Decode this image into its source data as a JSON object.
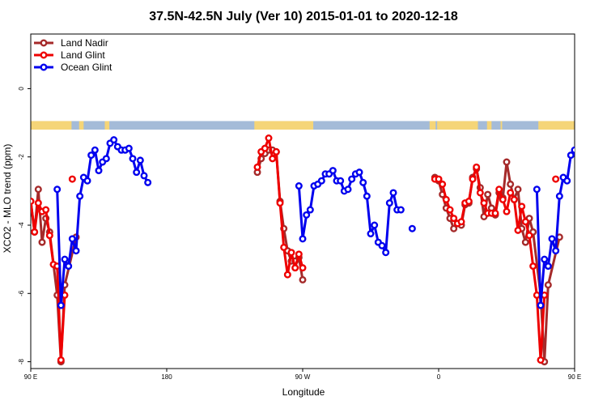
{
  "chart_data": {
    "type": "line",
    "title": "37.5N-42.5N July (Ver 10)   2015-01-01 to 2020-12-18",
    "xlabel": "Longitude",
    "ylabel": "XCO2 - MLO trend (ppm)",
    "xlim": [
      90,
      450
    ],
    "ylim": [
      -8.2,
      1.6
    ],
    "x_ticks": [
      {
        "value": 90,
        "label": "90 E"
      },
      {
        "value": 180,
        "label": "180"
      },
      {
        "value": 270,
        "label": "90 W"
      },
      {
        "value": 360,
        "label": "0"
      },
      {
        "value": 450,
        "label": "90 E"
      },
      {
        "value": 540,
        "label": "180"
      }
    ],
    "y_ticks": [
      {
        "value": 0,
        "label": "0"
      },
      {
        "value": -2,
        "label": "-2"
      },
      {
        "value": -4,
        "label": "-4"
      },
      {
        "value": -6,
        "label": "-6"
      },
      {
        "value": -8,
        "label": "-8"
      }
    ],
    "land_mask_bar": {
      "y_range": [
        -1.2,
        -0.95
      ],
      "ocean_color": "#a4bbd8",
      "land_color": "#f5d578",
      "land_spans": [
        [
          90,
          117
        ],
        [
          122,
          125
        ],
        [
          139,
          142
        ],
        [
          238,
          277
        ],
        [
          354,
          358
        ],
        [
          359,
          386
        ],
        [
          392,
          395
        ],
        [
          401,
          402
        ],
        [
          426,
          453
        ],
        [
          458,
          461
        ],
        [
          475,
          478
        ]
      ]
    },
    "legend": {
      "position": "top-left",
      "entries": [
        {
          "name": "Land Nadir",
          "color": "#a52a2a"
        },
        {
          "name": "Land Glint",
          "color": "#ee0000"
        },
        {
          "name": "Ocean Glint",
          "color": "#0000ee"
        }
      ]
    },
    "series": [
      {
        "name": "Land Nadir",
        "color": "#a52a2a",
        "segments": [
          [
            [
              90,
              -3.3
            ],
            [
              92.5,
              -4.2
            ],
            [
              95,
              -2.95
            ],
            [
              97.5,
              -4.5
            ],
            [
              100,
              -3.8
            ],
            [
              102.5,
              -4.2
            ],
            [
              107.5,
              -6.05
            ],
            [
              110,
              -8.0
            ],
            [
              112.5,
              -5.75
            ],
            [
              120,
              -4.35
            ]
          ],
          [
            [
              240,
              -2.45
            ],
            [
              242.5,
              -2.05
            ],
            [
              245,
              -1.9
            ],
            [
              247.5,
              -1.8
            ],
            [
              250,
              -1.8
            ],
            [
              252.5,
              -1.85
            ],
            [
              255,
              -3.3
            ],
            [
              257.5,
              -4.1
            ],
            [
              260,
              -4.75
            ],
            [
              262.5,
              -5.05
            ],
            [
              265,
              -5.05
            ],
            [
              267.5,
              -4.95
            ],
            [
              270,
              -5.6
            ]
          ],
          [
            [
              357.5,
              -2.6
            ],
            [
              360,
              -2.7
            ],
            [
              362.5,
              -3.1
            ],
            [
              365,
              -3.5
            ],
            [
              367.5,
              -3.8
            ],
            [
              370,
              -4.1
            ],
            [
              372.5,
              -3.95
            ],
            [
              375,
              -4.0
            ],
            [
              377.5,
              -3.4
            ],
            [
              380,
              -3.35
            ],
            [
              382.5,
              -2.6
            ],
            [
              385,
              -2.35
            ],
            [
              387.5,
              -2.9
            ],
            [
              390,
              -3.75
            ],
            [
              392.5,
              -3.1
            ],
            [
              395,
              -3.5
            ],
            [
              397.5,
              -3.7
            ],
            [
              400,
              -3.05
            ],
            [
              402.5,
              -3.2
            ],
            [
              405,
              -2.15
            ],
            [
              407.5,
              -2.8
            ],
            [
              410,
              -3.25
            ],
            [
              412.5,
              -2.95
            ],
            [
              415,
              -4.1
            ],
            [
              417.5,
              -4.5
            ],
            [
              420,
              -3.8
            ],
            [
              422.5,
              -4.2
            ],
            [
              427.5,
              -6.05
            ],
            [
              430,
              -8.0
            ],
            [
              432.5,
              -5.75
            ],
            [
              440,
              -4.35
            ]
          ]
        ]
      },
      {
        "name": "Land Glint",
        "color": "#ee0000",
        "segments": [
          [
            [
              90,
              -3.3
            ],
            [
              92.5,
              -4.2
            ],
            [
              95,
              -3.35
            ],
            [
              97.5,
              -3.6
            ],
            [
              100,
              -3.55
            ],
            [
              102.5,
              -4.3
            ],
            [
              105,
              -5.15
            ],
            [
              107.5,
              -5.2
            ],
            [
              110,
              -7.95
            ],
            [
              112.5,
              -6.05
            ]
          ],
          [
            [
              117.5,
              -2.65
            ]
          ],
          [
            [
              240,
              -2.3
            ],
            [
              242.5,
              -1.85
            ],
            [
              245,
              -1.75
            ],
            [
              247.5,
              -1.45
            ],
            [
              250,
              -2.05
            ],
            [
              252.5,
              -1.85
            ],
            [
              255,
              -3.35
            ],
            [
              257.5,
              -4.65
            ],
            [
              260,
              -5.45
            ],
            [
              262.5,
              -4.8
            ],
            [
              265,
              -5.25
            ],
            [
              267.5,
              -4.85
            ],
            [
              270,
              -5.25
            ]
          ],
          [
            [
              357.5,
              -2.65
            ],
            [
              360,
              -2.65
            ],
            [
              362.5,
              -2.8
            ],
            [
              365,
              -3.25
            ],
            [
              367.5,
              -3.55
            ],
            [
              370,
              -3.8
            ],
            [
              372.5,
              -3.95
            ],
            [
              375,
              -3.9
            ],
            [
              377.5,
              -3.35
            ],
            [
              380,
              -3.3
            ],
            [
              382.5,
              -2.65
            ],
            [
              385,
              -2.3
            ],
            [
              387.5,
              -3.05
            ],
            [
              390,
              -3.35
            ],
            [
              392.5,
              -3.65
            ],
            [
              395,
              -3.65
            ],
            [
              397.5,
              -3.65
            ],
            [
              400,
              -2.95
            ],
            [
              402.5,
              -3.25
            ],
            [
              405,
              -3.6
            ],
            [
              407.5,
              -3.05
            ],
            [
              410,
              -3.25
            ],
            [
              412.5,
              -4.15
            ],
            [
              415,
              -3.45
            ],
            [
              417.5,
              -3.9
            ],
            [
              420,
              -4.3
            ],
            [
              422.5,
              -5.2
            ],
            [
              425,
              -6.05
            ],
            [
              427.5,
              -7.95
            ],
            [
              430,
              -6.05
            ]
          ],
          [
            [
              437.5,
              -2.65
            ]
          ]
        ]
      },
      {
        "name": "Ocean Glint",
        "color": "#0000ee",
        "segments": [
          [
            [
              107.5,
              -2.95
            ],
            [
              110,
              -6.35
            ],
            [
              112.5,
              -5.0
            ],
            [
              115,
              -5.2
            ],
            [
              117.5,
              -4.4
            ],
            [
              120,
              -4.75
            ],
            [
              122.5,
              -3.15
            ],
            [
              125,
              -2.6
            ],
            [
              127.5,
              -2.7
            ],
            [
              130,
              -1.95
            ],
            [
              132.5,
              -1.8
            ],
            [
              135,
              -2.4
            ],
            [
              137.5,
              -2.15
            ],
            [
              140,
              -2.05
            ],
            [
              142.5,
              -1.6
            ],
            [
              145,
              -1.5
            ],
            [
              147.5,
              -1.7
            ],
            [
              150,
              -1.8
            ],
            [
              152.5,
              -1.8
            ],
            [
              155,
              -1.75
            ],
            [
              157.5,
              -2.05
            ],
            [
              160,
              -2.45
            ],
            [
              162.5,
              -2.1
            ],
            [
              165,
              -2.55
            ],
            [
              167.5,
              -2.75
            ]
          ],
          [
            [
              267.5,
              -2.85
            ],
            [
              270,
              -4.4
            ],
            [
              272.5,
              -3.7
            ],
            [
              275,
              -3.55
            ],
            [
              277.5,
              -2.85
            ],
            [
              280,
              -2.8
            ],
            [
              282.5,
              -2.7
            ],
            [
              285,
              -2.5
            ],
            [
              287.5,
              -2.5
            ],
            [
              290,
              -2.4
            ],
            [
              292.5,
              -2.7
            ],
            [
              295,
              -2.7
            ],
            [
              297.5,
              -3.0
            ],
            [
              300,
              -2.95
            ],
            [
              302.5,
              -2.65
            ],
            [
              305,
              -2.5
            ],
            [
              307.5,
              -2.45
            ],
            [
              310,
              -2.75
            ],
            [
              312.5,
              -3.15
            ],
            [
              315,
              -4.25
            ],
            [
              317.5,
              -4.0
            ],
            [
              320,
              -4.5
            ],
            [
              322.5,
              -4.6
            ],
            [
              325,
              -4.8
            ],
            [
              327.5,
              -3.35
            ],
            [
              330,
              -3.05
            ],
            [
              332.5,
              -3.55
            ],
            [
              335,
              -3.55
            ]
          ],
          [
            [
              342.5,
              -4.1
            ]
          ],
          [
            [
              425,
              -2.95
            ],
            [
              427.5,
              -6.35
            ],
            [
              430,
              -5.0
            ],
            [
              432.5,
              -5.2
            ],
            [
              435,
              -4.4
            ],
            [
              437.5,
              -4.75
            ],
            [
              440,
              -3.15
            ],
            [
              442.5,
              -2.6
            ],
            [
              445,
              -2.7
            ],
            [
              447.5,
              -1.95
            ],
            [
              450,
              -1.8
            ],
            [
              452.5,
              -2.4
            ],
            [
              455,
              -2.15
            ]
          ]
        ]
      }
    ]
  }
}
